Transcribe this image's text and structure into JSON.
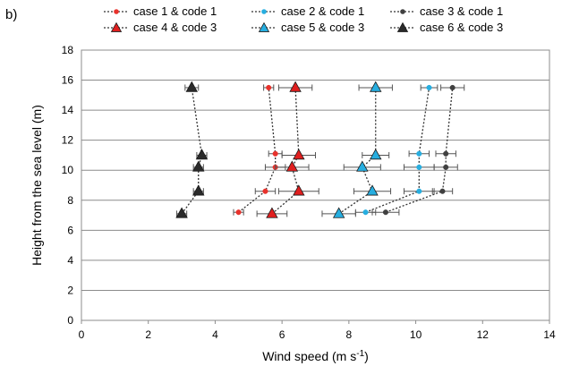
{
  "panel_label": "b)",
  "chart_data": {
    "type": "scatter",
    "xlabel": "Wind speed (m s",
    "xlabel_sup": "-1",
    "xlabel_end": ")",
    "ylabel": "Height from the sea level (m)",
    "xlim": [
      0,
      14
    ],
    "ylim": [
      0,
      18
    ],
    "xticks": [
      0,
      2,
      4,
      6,
      8,
      10,
      12,
      14
    ],
    "yticks": [
      0,
      2,
      4,
      6,
      8,
      10,
      12,
      14,
      16,
      18
    ],
    "grid": "horizontal",
    "legend_position": "top",
    "series": [
      {
        "name": "case 1 & code 1",
        "marker": "circle",
        "color": "#e8322c",
        "points": [
          {
            "x": 4.7,
            "y": 7.2,
            "err": 0.15
          },
          {
            "x": 5.5,
            "y": 8.6,
            "err": 0.3
          },
          {
            "x": 5.8,
            "y": 10.2,
            "err": 0.3
          },
          {
            "x": 5.8,
            "y": 11.1,
            "err": 0.2
          },
          {
            "x": 5.6,
            "y": 15.5,
            "err": 0.15
          }
        ]
      },
      {
        "name": "case 2 & code 1",
        "marker": "circle",
        "color": "#27aee0",
        "points": [
          {
            "x": 8.5,
            "y": 7.2,
            "err": 0.3
          },
          {
            "x": 10.1,
            "y": 8.6,
            "err": 0.45
          },
          {
            "x": 10.1,
            "y": 10.2,
            "err": 0.45
          },
          {
            "x": 10.1,
            "y": 11.1,
            "err": 0.3
          },
          {
            "x": 10.4,
            "y": 15.5,
            "err": 0.25
          }
        ]
      },
      {
        "name": "case 3 & code 1",
        "marker": "circle",
        "color": "#404040",
        "points": [
          {
            "x": 9.1,
            "y": 7.2,
            "err": 0.4
          },
          {
            "x": 10.8,
            "y": 8.6,
            "err": 0.3
          },
          {
            "x": 10.9,
            "y": 10.2,
            "err": 0.35
          },
          {
            "x": 10.9,
            "y": 11.1,
            "err": 0.3
          },
          {
            "x": 11.1,
            "y": 15.5,
            "err": 0.35
          }
        ]
      },
      {
        "name": "case 4 & code 3",
        "marker": "triangle",
        "color": "#e01f1f",
        "points": [
          {
            "x": 5.7,
            "y": 7.1,
            "err": 0.45
          },
          {
            "x": 6.5,
            "y": 8.6,
            "err": 0.6
          },
          {
            "x": 6.3,
            "y": 10.2,
            "err": 0.5
          },
          {
            "x": 6.5,
            "y": 11.0,
            "err": 0.5
          },
          {
            "x": 6.4,
            "y": 15.5,
            "err": 0.5
          }
        ]
      },
      {
        "name": "case 5 & code 3",
        "marker": "triangle",
        "color": "#27aee0",
        "points": [
          {
            "x": 7.7,
            "y": 7.1,
            "err": 0.5
          },
          {
            "x": 8.7,
            "y": 8.6,
            "err": 0.55
          },
          {
            "x": 8.4,
            "y": 10.2,
            "err": 0.55
          },
          {
            "x": 8.8,
            "y": 11.0,
            "err": 0.4
          },
          {
            "x": 8.8,
            "y": 15.5,
            "err": 0.5
          }
        ]
      },
      {
        "name": "case 6 & code 3",
        "marker": "triangle",
        "color": "#2a2a2a",
        "points": [
          {
            "x": 3.0,
            "y": 7.1,
            "err": 0.15
          },
          {
            "x": 3.5,
            "y": 8.6,
            "err": 0.15
          },
          {
            "x": 3.5,
            "y": 10.2,
            "err": 0.15
          },
          {
            "x": 3.6,
            "y": 11.0,
            "err": 0.15
          },
          {
            "x": 3.3,
            "y": 15.5,
            "err": 0.2
          }
        ]
      }
    ]
  }
}
